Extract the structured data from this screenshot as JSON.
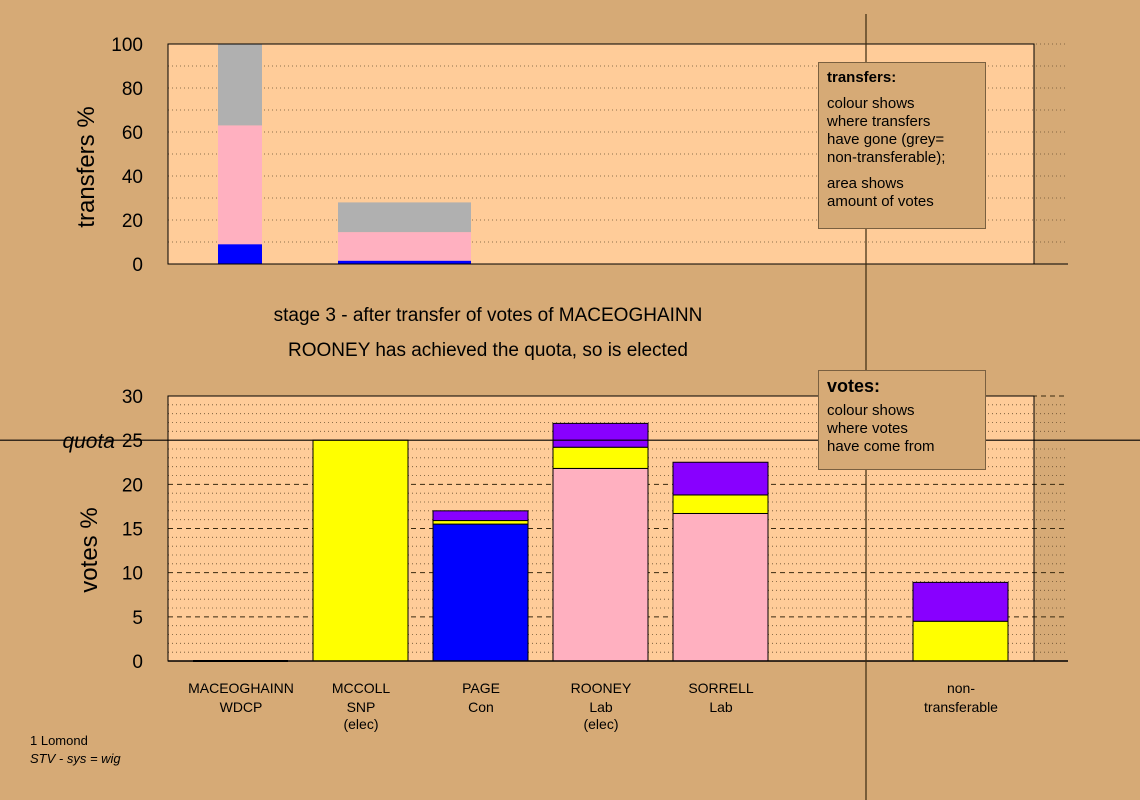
{
  "colors": {
    "background": "#d6aa76",
    "plot_area": "#ffcc99",
    "grey": "#b0b0b0",
    "pink": "#ffb0c0",
    "blue": "#0000ff",
    "yellow": "#ffff00",
    "purple": "#8800ff"
  },
  "heading": {
    "line1": "stage 3 - after transfer of votes of MACEOGHAINN",
    "line2": "ROONEY has achieved the quota, so is elected"
  },
  "legend_transfers": {
    "title": "transfers:",
    "lines": [
      "colour shows",
      "where transfers",
      "have gone (grey=",
      "non-transferable);"
    ],
    "lines2": [
      "area shows",
      "amount of votes"
    ]
  },
  "legend_votes": {
    "title": "votes:",
    "lines": [
      "colour shows",
      "where votes",
      "have come from"
    ]
  },
  "footer": {
    "ward": "1 Lomond",
    "system": "STV - sys = wig"
  },
  "chart_data": [
    {
      "type": "bar",
      "stacked": true,
      "ylabel": "transfers %",
      "ylim": [
        0,
        100
      ],
      "yticks": [
        0,
        20,
        40,
        60,
        80,
        100
      ],
      "grid": "dotted",
      "bars": [
        {
          "slot": 0,
          "segments": [
            {
              "color": "blue",
              "value": 9
            },
            {
              "color": "pink",
              "value": 54
            },
            {
              "color": "grey",
              "value": 37
            }
          ]
        },
        {
          "slot": 1,
          "segments": [
            {
              "color": "blue",
              "value": 1.5
            },
            {
              "color": "pink",
              "value": 13
            },
            {
              "color": "grey",
              "value": 13.5
            }
          ]
        }
      ]
    },
    {
      "type": "bar",
      "stacked": true,
      "ylabel": "votes %",
      "ylim": [
        0,
        30
      ],
      "yticks": [
        0,
        5,
        10,
        15,
        20,
        25,
        30
      ],
      "grid": "dashed",
      "quota": {
        "label": "quota",
        "value": 25
      },
      "candidates": [
        {
          "name": "MACEOGHAINN",
          "party": "WDCP",
          "note": "",
          "segments": []
        },
        {
          "name": "MCCOLL",
          "party": "SNP",
          "note": "(elec)",
          "segments": [
            {
              "color": "yellow",
              "value": 25
            }
          ]
        },
        {
          "name": "PAGE",
          "party": "Con",
          "note": "",
          "segments": [
            {
              "color": "blue",
              "value": 15.5
            },
            {
              "color": "yellow",
              "value": 0.4
            },
            {
              "color": "purple",
              "value": 1.1
            }
          ]
        },
        {
          "name": "ROONEY",
          "party": "Lab",
          "note": "(elec)",
          "segments": [
            {
              "color": "pink",
              "value": 21.8
            },
            {
              "color": "yellow",
              "value": 2.4
            },
            {
              "color": "purple",
              "value": 2.7
            }
          ]
        },
        {
          "name": "SORRELL",
          "party": "Lab",
          "note": "",
          "segments": [
            {
              "color": "pink",
              "value": 16.7
            },
            {
              "color": "yellow",
              "value": 2.1
            },
            {
              "color": "purple",
              "value": 3.7
            }
          ]
        },
        {
          "name": "",
          "party": "",
          "note": "",
          "segments": []
        },
        {
          "name": "non-",
          "party": "transferable",
          "note": "",
          "segments": [
            {
              "color": "yellow",
              "value": 4.5
            },
            {
              "color": "purple",
              "value": 4.4
            }
          ]
        }
      ]
    }
  ]
}
